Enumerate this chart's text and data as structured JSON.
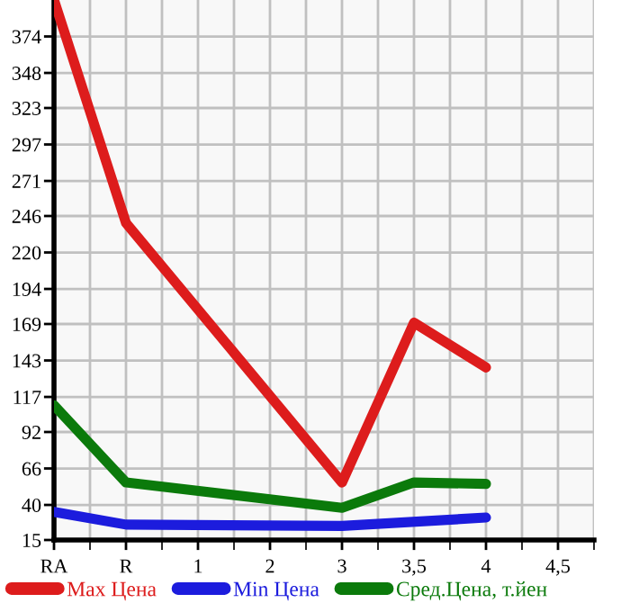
{
  "chart_data": {
    "type": "line",
    "categories": [
      "RA",
      "R",
      "1",
      "2",
      "3",
      "3,5",
      "4",
      "4,5"
    ],
    "series": [
      {
        "name": "Max Цена",
        "color": "#dd1c1c",
        "values": [
          400,
          241,
          null,
          null,
          56,
          170,
          138,
          null
        ]
      },
      {
        "name": "Min Цена",
        "color": "#1c1cdd",
        "values": [
          35,
          26,
          null,
          null,
          25,
          null,
          31,
          null
        ]
      },
      {
        "name": "Сред.Цена, т.йен",
        "color": "#0b7a0b",
        "values": [
          111,
          56,
          null,
          null,
          38,
          56,
          55,
          null
        ]
      }
    ],
    "ylim": [
      15,
      400
    ],
    "yticks": [
      15,
      40,
      66,
      92,
      117,
      143,
      169,
      194,
      220,
      246,
      271,
      297,
      323,
      348,
      374
    ],
    "grid": true,
    "legend": "bottom",
    "marker": "none",
    "line_style": "solid"
  }
}
